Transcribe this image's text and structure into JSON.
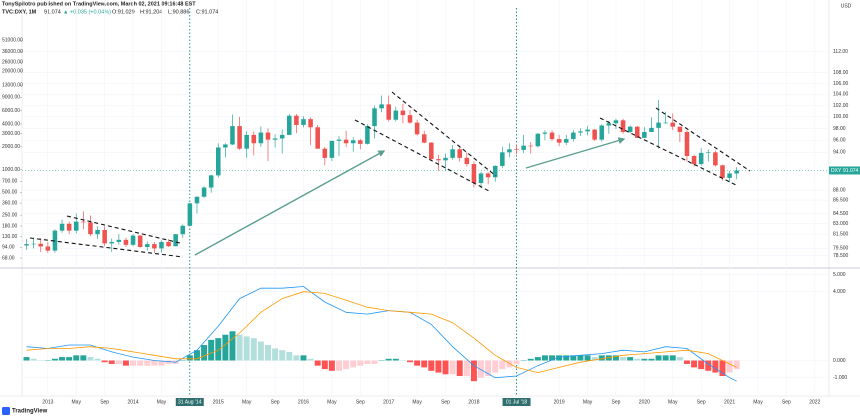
{
  "header": {
    "author_line": "TonySpilotro published on TradingView.com, March 02, 2021 09:16:48 EST",
    "symbol": "TVC:DXY, 1M",
    "last": "91.074",
    "change": "▲ +0.035 (+0.04%)",
    "ohlc": [
      "O:91.029",
      "H:91.204",
      "L:90.886",
      "C:91.074"
    ]
  },
  "footer": "TradingView",
  "chart_data": [
    {
      "type": "candlestick",
      "unit": "USD",
      "log_scale": true,
      "grid": true,
      "up_color": "#26a69a",
      "down_color": "#ef5350",
      "last_label": "DXY",
      "last_value": 91.074,
      "x": [
        "2012-10",
        "2012-11",
        "2012-12",
        "2013-01",
        "2013-02",
        "2013-03",
        "2013-04",
        "2013-05",
        "2013-06",
        "2013-07",
        "2013-08",
        "2013-09",
        "2013-10",
        "2013-11",
        "2013-12",
        "2014-01",
        "2014-02",
        "2014-03",
        "2014-04",
        "2014-05",
        "2014-06",
        "2014-07",
        "2014-08",
        "2014-09",
        "2014-10",
        "2014-11",
        "2014-12",
        "2015-01",
        "2015-02",
        "2015-03",
        "2015-04",
        "2015-05",
        "2015-06",
        "2015-07",
        "2015-08",
        "2015-09",
        "2015-10",
        "2015-11",
        "2015-12",
        "2016-01",
        "2016-02",
        "2016-03",
        "2016-04",
        "2016-05",
        "2016-06",
        "2016-07",
        "2016-08",
        "2016-09",
        "2016-10",
        "2016-11",
        "2016-12",
        "2017-01",
        "2017-02",
        "2017-03",
        "2017-04",
        "2017-05",
        "2017-06",
        "2017-07",
        "2017-08",
        "2017-09",
        "2017-10",
        "2017-11",
        "2017-12",
        "2018-01",
        "2018-02",
        "2018-03",
        "2018-04",
        "2018-05",
        "2018-06",
        "2018-07",
        "2018-08",
        "2018-09",
        "2018-10",
        "2018-11",
        "2018-12",
        "2019-01",
        "2019-02",
        "2019-03",
        "2019-04",
        "2019-05",
        "2019-06",
        "2019-07",
        "2019-08",
        "2019-09",
        "2019-10",
        "2019-11",
        "2019-12",
        "2020-01",
        "2020-02",
        "2020-03",
        "2020-04",
        "2020-05",
        "2020-06",
        "2020-07",
        "2020-08",
        "2020-09",
        "2020-10",
        "2020-11",
        "2020-12",
        "2021-01",
        "2021-02"
      ],
      "open": [
        79.9,
        80.1,
        80.15,
        79.77,
        79.2,
        82.0,
        82.99,
        82.0,
        83.3,
        83.2,
        81.5,
        82.1,
        80.2,
        80.4,
        80.7,
        80.0,
        81.3,
        79.7,
        80.1,
        79.5,
        80.4,
        79.8,
        81.5,
        82.7,
        86.0,
        87.0,
        88.4,
        90.3,
        94.8,
        95.3,
        98.4,
        94.6,
        96.9,
        95.5,
        97.3,
        96.1,
        96.3,
        96.9,
        100.2,
        98.6,
        99.6,
        98.2,
        94.6,
        93.1,
        95.9,
        96.1,
        95.5,
        96.0,
        95.4,
        98.4,
        101.5,
        102.2,
        99.5,
        101.1,
        100.3,
        99.0,
        97.0,
        95.6,
        92.9,
        92.7,
        93.1,
        94.5,
        93.1,
        92.1,
        89.1,
        90.6,
        90.0,
        91.8,
        94.0,
        94.5,
        94.4,
        95.1,
        95.0,
        97.1,
        97.3,
        96.2,
        95.6,
        96.2,
        97.3,
        97.5,
        97.8,
        96.1,
        98.5,
        98.9,
        99.4,
        97.4,
        98.3,
        96.4,
        97.4,
        98.1,
        99.0,
        99.0,
        98.3,
        97.4,
        93.4,
        92.1,
        93.9,
        94.0,
        91.9,
        89.9,
        90.6
      ],
      "high": [
        80.8,
        81.0,
        80.9,
        80.4,
        82.2,
        83.6,
        83.3,
        84.5,
        84.8,
        84.2,
        82.6,
        82.6,
        80.9,
        81.5,
        81.0,
        81.5,
        81.4,
        80.5,
        80.4,
        80.6,
        80.8,
        81.5,
        82.9,
        86.1,
        87.0,
        88.6,
        90.4,
        95.5,
        95.5,
        100.4,
        100.0,
        97.5,
        97.5,
        98.3,
        98.0,
        97.0,
        97.8,
        100.5,
        100.5,
        100.1,
        99.9,
        98.6,
        94.9,
        95.9,
        96.7,
        97.6,
        96.5,
        96.2,
        98.7,
        102.0,
        103.8,
        103.8,
        101.8,
        102.3,
        101.2,
        99.5,
        97.6,
        95.7,
        93.6,
        93.8,
        95.2,
        95.1,
        94.0,
        92.5,
        90.9,
        90.8,
        91.9,
        94.9,
        95.5,
        95.2,
        96.9,
        95.7,
        97.2,
        97.7,
        97.7,
        96.9,
        96.9,
        97.7,
        98.0,
        98.4,
        97.9,
        98.7,
        99.3,
        99.7,
        99.7,
        98.5,
        98.4,
        98.2,
        99.9,
        103.0,
        100.9,
        100.6,
        98.3,
        97.7,
        93.6,
        94.7,
        94.5,
        94.3,
        92.0,
        91.0,
        91.6
      ],
      "low": [
        79.3,
        79.5,
        79.0,
        78.9,
        78.9,
        81.7,
        81.5,
        81.6,
        82.2,
        81.2,
        80.8,
        79.8,
        79.0,
        80.0,
        79.7,
        79.8,
        79.6,
        79.2,
        78.9,
        78.9,
        79.7,
        79.8,
        81.0,
        82.6,
        84.5,
        86.8,
        87.6,
        90.0,
        93.2,
        95.2,
        94.4,
        93.1,
        93.5,
        94.9,
        92.6,
        94.8,
        93.8,
        96.9,
        97.2,
        98.2,
        95.2,
        94.6,
        91.9,
        92.6,
        93.4,
        94.9,
        94.1,
        94.5,
        95.3,
        96.3,
        100.8,
        99.2,
        99.2,
        98.9,
        98.8,
        96.8,
        95.5,
        92.6,
        91.0,
        91.0,
        92.8,
        92.5,
        91.7,
        88.4,
        88.3,
        88.9,
        89.3,
        91.5,
        93.2,
        93.7,
        93.9,
        93.8,
        94.8,
        96.0,
        95.9,
        95.0,
        95.2,
        95.8,
        96.7,
        96.8,
        95.9,
        95.8,
        97.1,
        97.9,
        97.1,
        97.2,
        96.4,
        96.4,
        97.4,
        94.6,
        98.8,
        97.7,
        95.7,
        92.5,
        91.7,
        91.8,
        92.5,
        91.7,
        89.5,
        89.2,
        89.7
      ],
      "close": [
        80.1,
        80.15,
        79.77,
        79.2,
        82.0,
        82.99,
        82.0,
        83.3,
        83.2,
        81.5,
        82.1,
        80.2,
        80.4,
        80.7,
        80.0,
        81.3,
        79.7,
        80.1,
        79.5,
        80.4,
        79.8,
        81.5,
        82.7,
        86.0,
        87.0,
        88.4,
        90.3,
        94.8,
        95.3,
        98.4,
        94.6,
        96.9,
        95.5,
        97.3,
        96.1,
        96.3,
        96.9,
        100.2,
        98.6,
        99.6,
        98.2,
        94.6,
        93.1,
        95.9,
        96.1,
        95.5,
        96.0,
        95.4,
        98.4,
        101.5,
        102.2,
        99.5,
        101.1,
        100.3,
        99.0,
        97.0,
        95.6,
        92.9,
        92.7,
        93.1,
        94.5,
        93.1,
        92.1,
        89.1,
        90.6,
        90.0,
        91.8,
        94.0,
        94.5,
        94.4,
        95.1,
        95.0,
        97.1,
        97.3,
        96.2,
        95.6,
        96.2,
        97.3,
        97.5,
        97.8,
        96.1,
        98.5,
        98.9,
        99.4,
        97.4,
        98.3,
        96.4,
        97.4,
        98.1,
        99.0,
        99.0,
        98.3,
        97.4,
        93.4,
        92.1,
        93.9,
        94.0,
        91.9,
        89.9,
        90.6,
        91.074
      ],
      "xlim": [
        "2012-09-12",
        "2022-03-01"
      ],
      "xticks": [
        {
          "value": "2013-01",
          "label": "2013"
        },
        {
          "value": "2013-05",
          "label": "May"
        },
        {
          "value": "2013-09",
          "label": "Sep"
        },
        {
          "value": "2014-01",
          "label": "2014"
        },
        {
          "value": "2014-05",
          "label": "May"
        },
        {
          "value": "2015-01",
          "label": "2015"
        },
        {
          "value": "2015-05",
          "label": "May"
        },
        {
          "value": "2015-09",
          "label": "Sep"
        },
        {
          "value": "2016-01",
          "label": "2016"
        },
        {
          "value": "2016-05",
          "label": "May"
        },
        {
          "value": "2016-09",
          "label": "Sep"
        },
        {
          "value": "2017-01",
          "label": "2017"
        },
        {
          "value": "2017-05",
          "label": "May"
        },
        {
          "value": "2017-09",
          "label": "Sep"
        },
        {
          "value": "2018-01",
          "label": "2018"
        },
        {
          "value": "2019-01",
          "label": "2019"
        },
        {
          "value": "2019-05",
          "label": "May"
        },
        {
          "value": "2019-09",
          "label": "Sep"
        },
        {
          "value": "2020-01",
          "label": "2020"
        },
        {
          "value": "2020-05",
          "label": "May"
        },
        {
          "value": "2020-09",
          "label": "Sep"
        },
        {
          "value": "2021-01",
          "label": "2021"
        },
        {
          "value": "2021-05",
          "label": "May"
        },
        {
          "value": "2021-09",
          "label": "Sep"
        },
        {
          "value": "2022-01",
          "label": "2022"
        }
      ],
      "markers": [
        {
          "x": "2014-08-31",
          "label": "31 Aug '14"
        },
        {
          "x": "2018-07-01",
          "label": "01 Jul '18"
        }
      ],
      "ylim": [
        77.1,
        120.9
      ],
      "yticks": [
        {
          "value": 112,
          "label": "112.00"
        },
        {
          "value": 108,
          "label": "108.00"
        },
        {
          "value": 106,
          "label": "106.00"
        },
        {
          "value": 104,
          "label": "104.00"
        },
        {
          "value": 102,
          "label": "102.00"
        },
        {
          "value": 100,
          "label": "100.00"
        },
        {
          "value": 98,
          "label": "98.00"
        },
        {
          "value": 96,
          "label": "96.00"
        },
        {
          "value": 94,
          "label": "94.00"
        },
        {
          "value": 88,
          "label": "88.00"
        },
        {
          "value": 86.5,
          "label": "86.500"
        },
        {
          "value": 84.5,
          "label": "84.500"
        },
        {
          "value": 83,
          "label": "83.000"
        },
        {
          "value": 81.5,
          "label": "81.500"
        },
        {
          "value": 79.5,
          "label": "79.500"
        },
        {
          "value": 78.5,
          "label": "78.500"
        }
      ],
      "y2lim": [
        53.3,
        136000
      ],
      "y2ticks": [
        {
          "value": 51000,
          "label": "51000.00"
        },
        {
          "value": 36000,
          "label": "36000.00"
        },
        {
          "value": 26000,
          "label": "26000.00"
        },
        {
          "value": 20000,
          "label": "20000.00"
        },
        {
          "value": 13000,
          "label": "13000.00"
        },
        {
          "value": 9000,
          "label": "9000.00"
        },
        {
          "value": 6000,
          "label": "6000.00"
        },
        {
          "value": 4000,
          "label": "4000.00"
        },
        {
          "value": 3000,
          "label": "3000.00"
        },
        {
          "value": 2000,
          "label": "2000.00"
        },
        {
          "value": 1000,
          "label": "1000.00"
        },
        {
          "value": 700,
          "label": "700.00"
        },
        {
          "value": 500,
          "label": "500.00"
        },
        {
          "value": 360,
          "label": "360.00"
        },
        {
          "value": 250,
          "label": "250.00"
        },
        {
          "value": 180,
          "label": "180.00"
        },
        {
          "value": 130,
          "label": "130.00"
        },
        {
          "value": 94,
          "label": "94.00"
        },
        {
          "value": 68,
          "label": "68.00"
        }
      ]
    },
    {
      "type": "macd",
      "x": [
        "2012-10",
        "2013-01",
        "2013-04",
        "2013-07",
        "2013-10",
        "2014-01",
        "2014-04",
        "2014-07",
        "2014-10",
        "2015-01",
        "2015-04",
        "2015-07",
        "2015-10",
        "2016-01",
        "2016-04",
        "2016-07",
        "2016-10",
        "2017-01",
        "2017-04",
        "2017-07",
        "2017-10",
        "2018-01",
        "2018-04",
        "2018-07",
        "2018-10",
        "2019-01",
        "2019-04",
        "2019-07",
        "2019-10",
        "2020-01",
        "2020-04",
        "2020-07",
        "2020-10",
        "2021-01",
        "2021-02"
      ],
      "series": [
        {
          "name": "MACD",
          "color": "#2196f3",
          "values": [
            0.8,
            0.7,
            0.9,
            0.9,
            0.5,
            0.2,
            0.0,
            -0.1,
            0.6,
            2.0,
            3.6,
            4.2,
            4.2,
            4.3,
            3.4,
            2.8,
            2.7,
            2.9,
            2.8,
            2.1,
            0.8,
            -0.3,
            -1.0,
            -0.9,
            -0.3,
            0.2,
            0.3,
            0.4,
            0.6,
            0.5,
            0.8,
            0.7,
            -0.2,
            -1.0,
            -1.2
          ]
        },
        {
          "name": "Signal",
          "color": "#ff9800",
          "values": [
            0.6,
            0.7,
            0.7,
            0.8,
            0.7,
            0.5,
            0.3,
            0.1,
            0.1,
            0.6,
            1.6,
            2.8,
            3.6,
            4.0,
            3.9,
            3.5,
            3.1,
            2.9,
            2.8,
            2.7,
            2.2,
            1.3,
            0.3,
            -0.4,
            -0.7,
            -0.4,
            -0.1,
            0.1,
            0.3,
            0.4,
            0.5,
            0.6,
            0.4,
            -0.2,
            -0.4
          ]
        }
      ],
      "histogram": {
        "colors": {
          "pos_up": "#26a69a",
          "pos_down": "#b2dfdb",
          "neg_down": "#ff5252",
          "neg_up": "#ffcdd2"
        },
        "values": [
          0.2,
          0.1,
          0.0,
          0.0,
          0.1,
          0.2,
          0.2,
          0.3,
          0.3,
          0.2,
          0.1,
          -0.1,
          -0.2,
          -0.2,
          -0.3,
          -0.3,
          -0.3,
          -0.3,
          -0.3,
          -0.3,
          -0.2,
          -0.2,
          0.0,
          0.3,
          0.6,
          0.9,
          1.2,
          1.3,
          1.5,
          1.7,
          1.5,
          1.4,
          1.3,
          1.1,
          0.9,
          0.7,
          0.6,
          0.5,
          0.3,
          0.3,
          0.1,
          -0.3,
          -0.5,
          -0.6,
          -0.6,
          -0.5,
          -0.4,
          -0.3,
          -0.2,
          -0.2,
          0.0,
          0.1,
          0.1,
          0.0,
          -0.1,
          -0.3,
          -0.4,
          -0.6,
          -0.7,
          -0.8,
          -0.8,
          -0.9,
          -0.9,
          -1.2,
          -1.0,
          -0.9,
          -0.7,
          -0.5,
          -0.4,
          -0.2,
          0.0,
          0.1,
          0.2,
          0.3,
          0.3,
          0.3,
          0.3,
          0.3,
          0.3,
          0.3,
          0.2,
          0.3,
          0.3,
          0.3,
          0.2,
          0.2,
          0.1,
          0.1,
          0.1,
          0.3,
          0.3,
          0.3,
          0.2,
          -0.2,
          -0.4,
          -0.5,
          -0.6,
          -0.7,
          -0.9,
          -0.7,
          -0.5
        ]
      },
      "ylim": [
        -1.83,
        5.26
      ],
      "yticks": [
        {
          "value": 5,
          "label": "5.000"
        },
        {
          "value": 4,
          "label": "4.000"
        },
        {
          "value": 0,
          "label": "0.000"
        },
        {
          "value": -1,
          "label": "-1.000"
        }
      ]
    }
  ]
}
